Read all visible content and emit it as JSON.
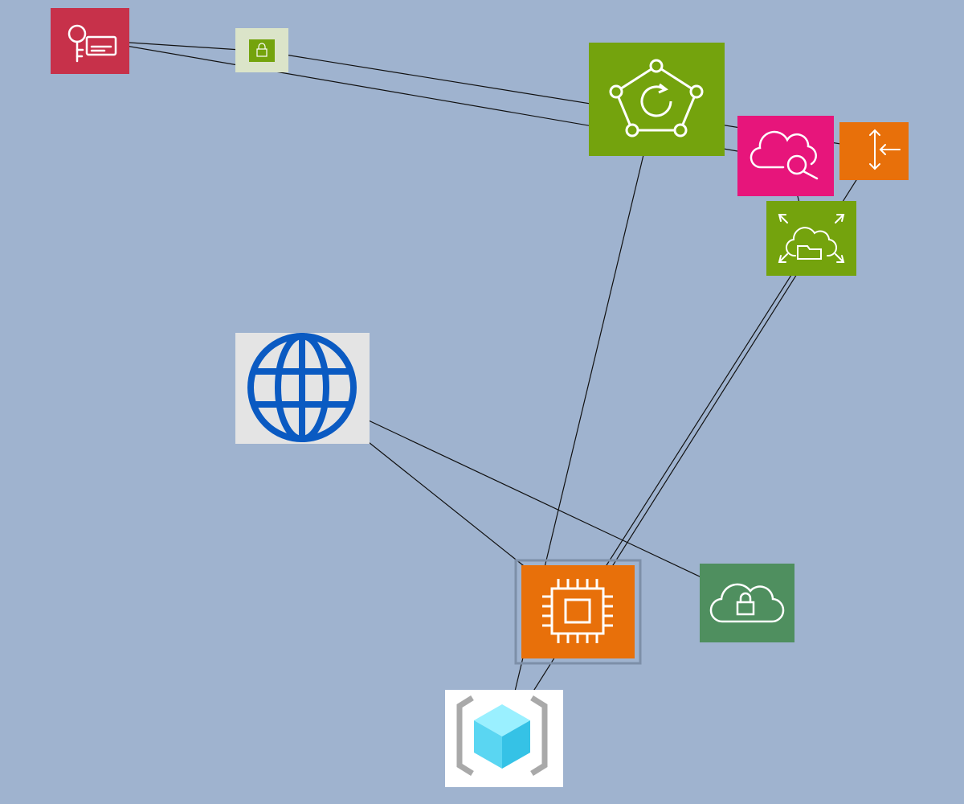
{
  "canvas": {
    "background": "#9fb3cf"
  },
  "colors": {
    "security_red": "#c7314a",
    "mgmt_green": "#74a30d",
    "pink": "#e7157b",
    "compute_orange": "#e8700a",
    "storage_green": "#4f8f5f",
    "globe_blue": "#0a5ac2",
    "light_bg": "#e4e4e4",
    "white": "#ffffff",
    "edge": "#111111"
  },
  "nodes": [
    {
      "id": "key-cert",
      "icon": "key-certificate-icon",
      "color": "#c7314a"
    },
    {
      "id": "small-lock",
      "icon": "small-lock-icon",
      "color": "#74a30d"
    },
    {
      "id": "pentagon-refresh",
      "icon": "pentagon-refresh-icon",
      "color": "#74a30d"
    },
    {
      "id": "cloud-search",
      "icon": "cloud-search-icon",
      "color": "#e7157b"
    },
    {
      "id": "arrows-in",
      "icon": "arrows-converge-icon",
      "color": "#e8700a"
    },
    {
      "id": "cloud-folder",
      "icon": "cloud-folder-expand-icon",
      "color": "#74a30d"
    },
    {
      "id": "globe",
      "icon": "globe-icon",
      "color": "#0a5ac2"
    },
    {
      "id": "chip",
      "icon": "processor-chip-icon",
      "color": "#e8700a"
    },
    {
      "id": "cloud-lock",
      "icon": "cloud-lock-icon",
      "color": "#4f8f5f"
    },
    {
      "id": "cube",
      "icon": "bracket-cube-icon",
      "color": "#5ad6f2"
    }
  ],
  "edges": [
    {
      "from": "small-lock",
      "to": "key-cert"
    },
    {
      "from": "cloud-search",
      "to": "key-cert"
    },
    {
      "from": "arrows-in",
      "to": "small-lock"
    },
    {
      "from": "cloud-folder",
      "to": "cloud-search"
    },
    {
      "from": "cube",
      "to": "pentagon-refresh"
    },
    {
      "from": "cube",
      "to": "arrows-in"
    },
    {
      "from": "chip",
      "to": "globe"
    },
    {
      "from": "cloud-lock",
      "to": "globe"
    },
    {
      "from": "cloud-folder",
      "to": "chip"
    }
  ]
}
